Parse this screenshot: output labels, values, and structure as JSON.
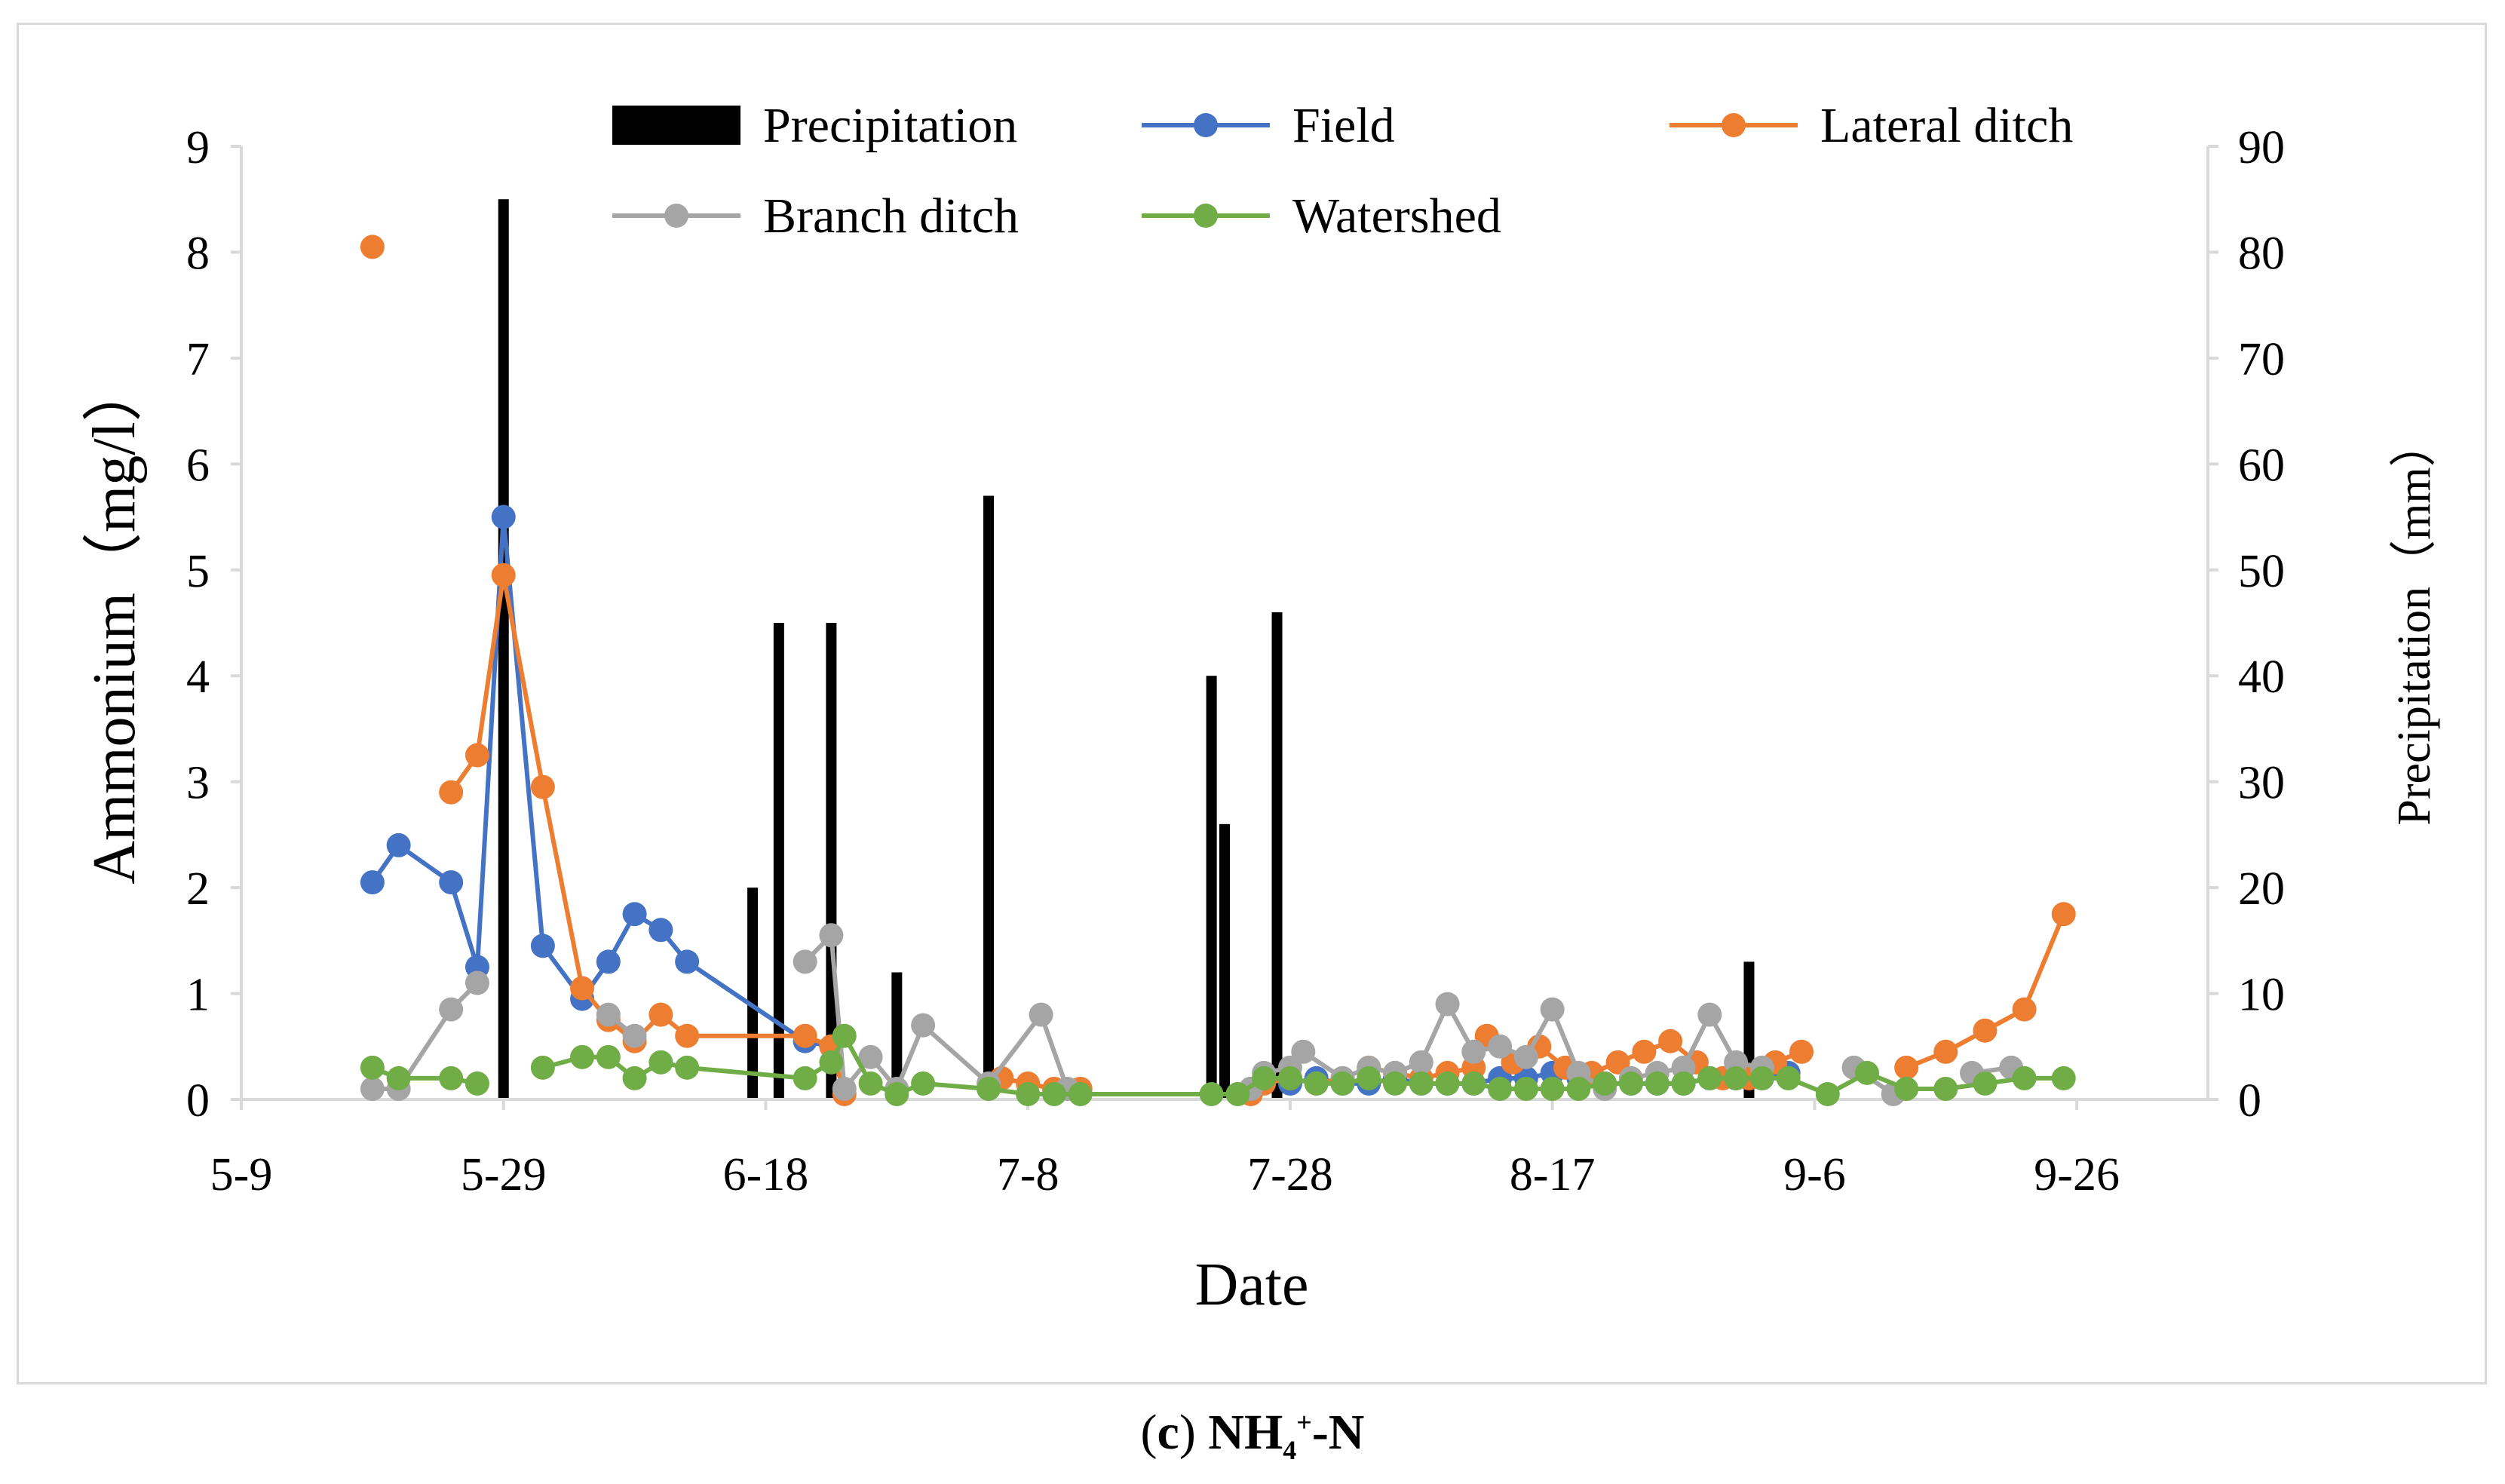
{
  "chart_data": {
    "type": "line+bar",
    "title": "",
    "xlabel": "Date",
    "ylabel": "Ammonium（mg/l）",
    "y2label": "Precipitation（mm）",
    "ylim": [
      0,
      9
    ],
    "y2lim": [
      0,
      90
    ],
    "xlim_days": [
      0,
      150
    ],
    "x_ticks": [
      {
        "day": 0,
        "label": "5-9"
      },
      {
        "day": 20,
        "label": "5-29"
      },
      {
        "day": 40,
        "label": "6-18"
      },
      {
        "day": 60,
        "label": "7-8"
      },
      {
        "day": 80,
        "label": "7-28"
      },
      {
        "day": 100,
        "label": "8-17"
      },
      {
        "day": 120,
        "label": "9-6"
      },
      {
        "day": 140,
        "label": "9-26"
      }
    ],
    "y_ticks": [
      "0",
      "1",
      "2",
      "3",
      "4",
      "5",
      "6",
      "7",
      "8",
      "9"
    ],
    "y2_ticks": [
      "0",
      "10",
      "20",
      "30",
      "40",
      "50",
      "60",
      "70",
      "80",
      "90"
    ],
    "legend": [
      "Precipitation",
      "Field",
      "Lateral ditch",
      "Branch ditch",
      "Watershed"
    ],
    "colors": {
      "Precipitation": "#000000",
      "Field": "#4472c4",
      "Lateral ditch": "#ed7d31",
      "Branch ditch": "#a5a5a5",
      "Watershed": "#70ad47",
      "axis": "#d9d9d9"
    },
    "precipitation": [
      {
        "day": 20,
        "value": 85
      },
      {
        "day": 39,
        "value": 20
      },
      {
        "day": 41,
        "value": 45
      },
      {
        "day": 45,
        "value": 45
      },
      {
        "day": 50,
        "value": 12
      },
      {
        "day": 57,
        "value": 57
      },
      {
        "day": 74,
        "value": 40
      },
      {
        "day": 75,
        "value": 26
      },
      {
        "day": 79,
        "value": 46
      },
      {
        "day": 115,
        "value": 13
      }
    ],
    "series": [
      {
        "name": "Field",
        "segments": [
          [
            [
              10,
              2.05
            ],
            [
              12,
              2.4
            ],
            [
              16,
              2.05
            ],
            [
              18,
              1.25
            ],
            [
              20,
              5.5
            ],
            [
              23,
              1.45
            ],
            [
              26,
              0.95
            ],
            [
              28,
              1.3
            ],
            [
              30,
              1.75
            ],
            [
              32,
              1.6
            ],
            [
              34,
              1.3
            ],
            [
              43,
              0.55
            ],
            [
              45,
              0.5
            ]
          ],
          [
            [
              77,
              0.1
            ],
            [
              78,
              0.2
            ],
            [
              80,
              0.15
            ],
            [
              82,
              0.2
            ],
            [
              84,
              0.15
            ],
            [
              86,
              0.15
            ],
            [
              88,
              0.2
            ],
            [
              90,
              0.15
            ],
            [
              92,
              0.15
            ],
            [
              94,
              0.15
            ],
            [
              96,
              0.2
            ],
            [
              98,
              0.2
            ],
            [
              100,
              0.25
            ],
            [
              102,
              0.2
            ],
            [
              104,
              0.15
            ],
            [
              106,
              0.15
            ],
            [
              108,
              0.15
            ],
            [
              110,
              0.15
            ],
            [
              112,
              0.2
            ],
            [
              114,
              0.2
            ],
            [
              116,
              0.2
            ],
            [
              118,
              0.25
            ]
          ]
        ]
      },
      {
        "name": "Lateral ditch",
        "segments": [
          [
            [
              10,
              8.05
            ]
          ],
          [
            [
              16,
              2.9
            ],
            [
              18,
              3.25
            ],
            [
              20,
              4.95
            ],
            [
              23,
              2.95
            ],
            [
              26,
              1.05
            ],
            [
              28,
              0.75
            ],
            [
              30,
              0.55
            ],
            [
              32,
              0.8
            ],
            [
              34,
              0.6
            ],
            [
              43,
              0.6
            ],
            [
              45,
              0.5
            ],
            [
              46,
              0.05
            ]
          ],
          [
            [
              58,
              0.2
            ],
            [
              60,
              0.15
            ],
            [
              62,
              0.1
            ],
            [
              64,
              0.1
            ]
          ],
          [
            [
              77,
              0.05
            ],
            [
              78,
              0.15
            ],
            [
              80,
              0.2
            ],
            [
              82,
              0.15
            ],
            [
              84,
              0.2
            ],
            [
              86,
              0.3
            ],
            [
              88,
              0.25
            ],
            [
              90,
              0.2
            ],
            [
              92,
              0.25
            ],
            [
              94,
              0.3
            ],
            [
              95,
              0.6
            ],
            [
              97,
              0.35
            ],
            [
              99,
              0.5
            ],
            [
              101,
              0.3
            ],
            [
              103,
              0.25
            ],
            [
              105,
              0.35
            ],
            [
              107,
              0.45
            ],
            [
              109,
              0.55
            ],
            [
              111,
              0.35
            ],
            [
              113,
              0.2
            ],
            [
              115,
              0.2
            ],
            [
              117,
              0.35
            ],
            [
              119,
              0.45
            ]
          ],
          [
            [
              127,
              0.3
            ],
            [
              130,
              0.45
            ],
            [
              133,
              0.65
            ],
            [
              136,
              0.85
            ],
            [
              139,
              1.75
            ]
          ]
        ]
      },
      {
        "name": "Branch ditch",
        "segments": [
          [
            [
              10,
              0.1
            ],
            [
              12,
              0.1
            ],
            [
              16,
              0.85
            ],
            [
              18,
              1.1
            ]
          ],
          [
            [
              28,
              0.8
            ],
            [
              30,
              0.6
            ]
          ],
          [
            [
              43,
              1.3
            ],
            [
              45,
              1.55
            ],
            [
              46,
              0.1
            ],
            [
              48,
              0.4
            ],
            [
              50,
              0.1
            ],
            [
              52,
              0.7
            ],
            [
              57,
              0.15
            ],
            [
              61,
              0.8
            ],
            [
              63,
              0.1
            ]
          ],
          [
            [
              77,
              0.1
            ],
            [
              78,
              0.25
            ],
            [
              80,
              0.3
            ],
            [
              81,
              0.45
            ],
            [
              84,
              0.2
            ],
            [
              86,
              0.3
            ],
            [
              88,
              0.25
            ],
            [
              90,
              0.35
            ],
            [
              92,
              0.9
            ],
            [
              94,
              0.45
            ],
            [
              96,
              0.5
            ],
            [
              98,
              0.4
            ],
            [
              100,
              0.85
            ],
            [
              102,
              0.25
            ],
            [
              104,
              0.1
            ],
            [
              106,
              0.2
            ],
            [
              108,
              0.25
            ],
            [
              110,
              0.3
            ],
            [
              112,
              0.8
            ],
            [
              114,
              0.35
            ],
            [
              116,
              0.3
            ]
          ],
          [
            [
              123,
              0.3
            ],
            [
              126,
              0.05
            ]
          ],
          [
            [
              132,
              0.25
            ],
            [
              135,
              0.3
            ]
          ]
        ]
      },
      {
        "name": "Watershed",
        "segments": [
          [
            [
              10,
              0.3
            ],
            [
              12,
              0.2
            ],
            [
              16,
              0.2
            ],
            [
              18,
              0.15
            ]
          ],
          [
            [
              23,
              0.3
            ],
            [
              26,
              0.4
            ],
            [
              28,
              0.4
            ],
            [
              30,
              0.2
            ],
            [
              32,
              0.35
            ],
            [
              34,
              0.3
            ],
            [
              43,
              0.2
            ],
            [
              45,
              0.35
            ],
            [
              46,
              0.6
            ],
            [
              48,
              0.15
            ],
            [
              50,
              0.05
            ],
            [
              52,
              0.15
            ],
            [
              57,
              0.1
            ],
            [
              60,
              0.05
            ],
            [
              62,
              0.05
            ],
            [
              64,
              0.05
            ],
            [
              74,
              0.05
            ],
            [
              76,
              0.05
            ],
            [
              78,
              0.2
            ],
            [
              80,
              0.2
            ],
            [
              82,
              0.15
            ],
            [
              84,
              0.15
            ],
            [
              86,
              0.2
            ],
            [
              88,
              0.15
            ],
            [
              90,
              0.15
            ],
            [
              92,
              0.15
            ],
            [
              94,
              0.15
            ],
            [
              96,
              0.1
            ],
            [
              98,
              0.1
            ],
            [
              100,
              0.1
            ],
            [
              102,
              0.1
            ],
            [
              104,
              0.15
            ],
            [
              106,
              0.15
            ],
            [
              108,
              0.15
            ],
            [
              110,
              0.15
            ],
            [
              112,
              0.2
            ],
            [
              114,
              0.2
            ],
            [
              116,
              0.2
            ],
            [
              118,
              0.2
            ],
            [
              121,
              0.05
            ],
            [
              124,
              0.25
            ],
            [
              127,
              0.1
            ],
            [
              130,
              0.1
            ],
            [
              133,
              0.15
            ],
            [
              136,
              0.2
            ],
            [
              139,
              0.2
            ]
          ]
        ]
      }
    ]
  },
  "caption": {
    "prefix": "(",
    "letter": "c",
    "suffix": ") ",
    "nh": "NH",
    "sub": "4",
    "sup": "+",
    "tail": "-N"
  }
}
